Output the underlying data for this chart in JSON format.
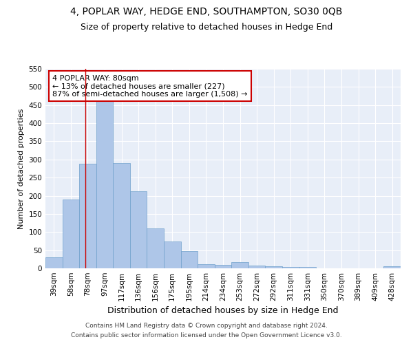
{
  "title1": "4, POPLAR WAY, HEDGE END, SOUTHAMPTON, SO30 0QB",
  "title2": "Size of property relative to detached houses in Hedge End",
  "xlabel": "Distribution of detached houses by size in Hedge End",
  "ylabel": "Number of detached properties",
  "categories": [
    "39sqm",
    "58sqm",
    "78sqm",
    "97sqm",
    "117sqm",
    "136sqm",
    "156sqm",
    "175sqm",
    "195sqm",
    "214sqm",
    "234sqm",
    "253sqm",
    "272sqm",
    "292sqm",
    "311sqm",
    "331sqm",
    "350sqm",
    "370sqm",
    "389sqm",
    "409sqm",
    "428sqm"
  ],
  "values": [
    30,
    190,
    288,
    460,
    290,
    212,
    110,
    74,
    47,
    12,
    10,
    17,
    8,
    6,
    4,
    4,
    0,
    0,
    0,
    0,
    5
  ],
  "bar_color": "#aec6e8",
  "bar_edge_color": "#6fa0cc",
  "vline_x_idx": 2,
  "vline_color": "#cc0000",
  "annotation_line1": "4 POPLAR WAY: 80sqm",
  "annotation_line2": "← 13% of detached houses are smaller (227)",
  "annotation_line3": "87% of semi-detached houses are larger (1,508) →",
  "annotation_box_color": "#ffffff",
  "annotation_box_edge": "#cc0000",
  "ylim": [
    0,
    550
  ],
  "yticks": [
    0,
    50,
    100,
    150,
    200,
    250,
    300,
    350,
    400,
    450,
    500,
    550
  ],
  "background_color": "#e8eef8",
  "footer1": "Contains HM Land Registry data © Crown copyright and database right 2024.",
  "footer2": "Contains public sector information licensed under the Open Government Licence v3.0.",
  "title_fontsize": 10,
  "subtitle_fontsize": 9,
  "xlabel_fontsize": 9,
  "ylabel_fontsize": 8,
  "tick_fontsize": 7.5,
  "footer_fontsize": 6.5,
  "annotation_fontsize": 8
}
